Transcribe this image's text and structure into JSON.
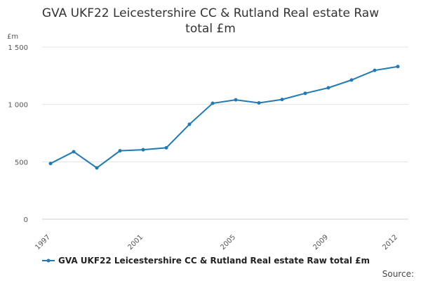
{
  "chart_data": {
    "type": "line",
    "title_lines": [
      "GVA UKF22 Leicestershire CC & Rutland Real estate Raw",
      "total £m"
    ],
    "ylabel": "£m",
    "xlabel": "",
    "x": [
      1997,
      1998,
      1999,
      2000,
      2001,
      2002,
      2003,
      2004,
      2005,
      2006,
      2007,
      2008,
      2009,
      2010,
      2011,
      2012
    ],
    "x_tick_labels": [
      {
        "value": 1997,
        "label": "1997"
      },
      {
        "value": 2001,
        "label": "2001"
      },
      {
        "value": 2005,
        "label": "2005"
      },
      {
        "value": 2009,
        "label": "2009"
      },
      {
        "value": 2012,
        "label": "2012"
      }
    ],
    "y_ticks": [
      {
        "value": 0,
        "label": "0"
      },
      {
        "value": 500,
        "label": "500"
      },
      {
        "value": 1000,
        "label": "1 000"
      },
      {
        "value": 1500,
        "label": "1 500"
      }
    ],
    "ylim": [
      0,
      1500
    ],
    "xlim": [
      1997,
      2012
    ],
    "series": [
      {
        "name": "GVA UKF22 Leicestershire CC & Rutland Real estate Raw total £m",
        "color": "#1f7ab5",
        "values": [
          485,
          588,
          447,
          596,
          605,
          622,
          827,
          1010,
          1040,
          1013,
          1043,
          1097,
          1145,
          1213,
          1297,
          1330
        ]
      }
    ],
    "grid": true,
    "legend_position": "bottom-left"
  },
  "footer": {
    "source_label": "Source:"
  }
}
